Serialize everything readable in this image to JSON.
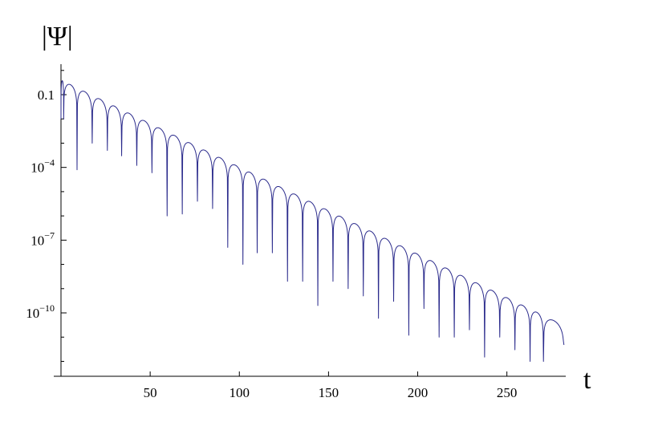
{
  "chart_data": {
    "type": "line",
    "title": "",
    "xlabel": "t",
    "ylabel": "|Ψ|",
    "xlim": [
      0,
      283
    ],
    "ylim": [
      1e-12,
      1
    ],
    "yscale": "log",
    "grid": false,
    "legend": "none",
    "x_ticks": [
      {
        "value": 50,
        "label": "50"
      },
      {
        "value": 100,
        "label": "100"
      },
      {
        "value": 150,
        "label": "150"
      },
      {
        "value": 200,
        "label": "200"
      },
      {
        "value": 250,
        "label": "250"
      }
    ],
    "y_ticks": [
      {
        "value": 0.1,
        "base": "0.1",
        "exp": ""
      },
      {
        "value": 0.0001,
        "base": "10",
        "exp": "−4"
      },
      {
        "value": 1e-07,
        "base": "10",
        "exp": "−7"
      },
      {
        "value": 1e-10,
        "base": "10",
        "exp": "−10"
      }
    ],
    "series": [
      {
        "color": "#2b2b8c",
        "x_end": 282,
        "envelope_start": 0.4,
        "envelope_end": 3e-11,
        "lobes": [
          {
            "from": 0.0,
            "to": 1.5,
            "dip": 0.01
          },
          {
            "from": 1.5,
            "to": 9.0,
            "dip": 8e-05
          },
          {
            "from": 9.0,
            "to": 17.5,
            "dip": 0.001
          },
          {
            "from": 17.5,
            "to": 26.0,
            "dip": 0.0005
          },
          {
            "from": 26.0,
            "to": 34.0,
            "dip": 0.0003
          },
          {
            "from": 34.0,
            "to": 42.5,
            "dip": 0.00012
          },
          {
            "from": 42.5,
            "to": 51.0,
            "dip": 6e-05
          },
          {
            "from": 51.0,
            "to": 59.5,
            "dip": 1e-06
          },
          {
            "from": 59.5,
            "to": 68.0,
            "dip": 1.2e-06
          },
          {
            "from": 68.0,
            "to": 76.5,
            "dip": 4e-06
          },
          {
            "from": 76.5,
            "to": 85.0,
            "dip": 2e-06
          },
          {
            "from": 85.0,
            "to": 93.5,
            "dip": 5e-08
          },
          {
            "from": 93.5,
            "to": 102.0,
            "dip": 1e-08
          },
          {
            "from": 102.0,
            "to": 110.0,
            "dip": 3e-08
          },
          {
            "from": 110.0,
            "to": 118.5,
            "dip": 3e-08
          },
          {
            "from": 118.5,
            "to": 127.0,
            "dip": 2e-09
          },
          {
            "from": 127.0,
            "to": 135.5,
            "dip": 2e-09
          },
          {
            "from": 135.5,
            "to": 144.0,
            "dip": 2e-10
          },
          {
            "from": 144.0,
            "to": 152.5,
            "dip": 2e-09
          },
          {
            "from": 152.5,
            "to": 161.0,
            "dip": 1e-09
          },
          {
            "from": 161.0,
            "to": 169.5,
            "dip": 5e-10
          },
          {
            "from": 169.5,
            "to": 178.0,
            "dip": 6e-11
          },
          {
            "from": 178.0,
            "to": 186.5,
            "dip": 3e-10
          },
          {
            "from": 186.5,
            "to": 195.0,
            "dip": 1.2e-11
          },
          {
            "from": 195.0,
            "to": 203.5,
            "dip": 1.5e-10
          },
          {
            "from": 203.5,
            "to": 212.0,
            "dip": 1e-11
          },
          {
            "from": 212.0,
            "to": 220.5,
            "dip": 1e-11
          },
          {
            "from": 220.5,
            "to": 229.0,
            "dip": 2e-11
          },
          {
            "from": 229.0,
            "to": 237.5,
            "dip": 1.5e-12
          },
          {
            "from": 237.5,
            "to": 246.0,
            "dip": 1e-11
          },
          {
            "from": 246.0,
            "to": 254.5,
            "dip": 3e-12
          },
          {
            "from": 254.5,
            "to": 263.0,
            "dip": 1e-12
          },
          {
            "from": 263.0,
            "to": 270.5,
            "dip": 1e-12
          },
          {
            "from": 270.5,
            "to": 282.0,
            "dip": 1e-12
          }
        ]
      }
    ]
  }
}
